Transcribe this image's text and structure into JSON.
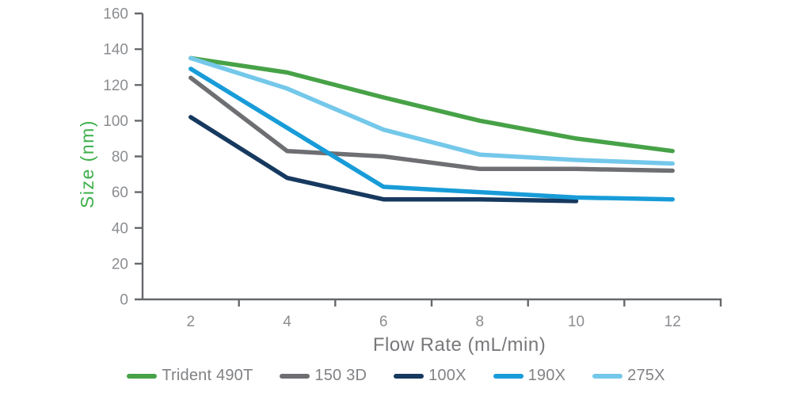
{
  "chart_data": {
    "type": "line",
    "title": "",
    "xlabel": "Flow Rate (mL/min)",
    "ylabel": "Size (nm)",
    "categories": [
      2,
      4,
      6,
      8,
      10,
      12
    ],
    "x_tick_labels": [
      "2",
      "4",
      "6",
      "8",
      "10",
      "12"
    ],
    "y_ticks": [
      0,
      20,
      40,
      60,
      80,
      100,
      120,
      140,
      160
    ],
    "ylim": [
      0,
      160
    ],
    "grid": false,
    "legend_position": "bottom",
    "series": [
      {
        "name": "Trident 490T",
        "color": "#47a247",
        "values": [
          135,
          127,
          113,
          100,
          90,
          83
        ]
      },
      {
        "name": "150 3D",
        "color": "#6e6f72",
        "values": [
          124,
          83,
          80,
          73,
          73,
          72
        ]
      },
      {
        "name": "100X",
        "color": "#16395f",
        "values": [
          102,
          68,
          56,
          56,
          55,
          null
        ]
      },
      {
        "name": "190X",
        "color": "#189cd8",
        "values": [
          129,
          96,
          63,
          60,
          57,
          56
        ]
      },
      {
        "name": "275X",
        "color": "#74c8ea",
        "values": [
          135,
          118,
          95,
          81,
          78,
          76
        ]
      }
    ]
  },
  "style": {
    "axis_color": "#66686b",
    "y_title_color": "#3db04a",
    "x_title_color": "#77787b",
    "tick_label_color": "#8b8d90",
    "legend_text_color": "#808285"
  }
}
